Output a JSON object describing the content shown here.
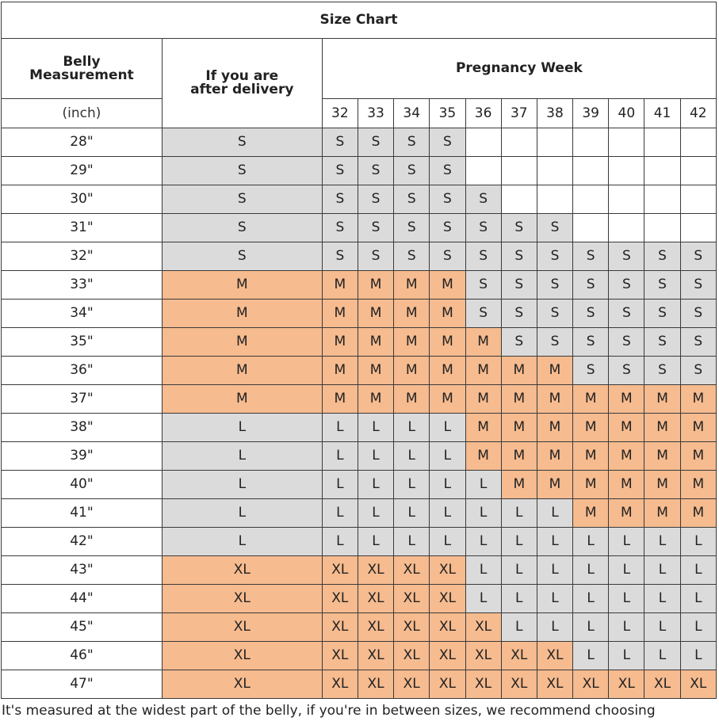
{
  "title": "Size Chart",
  "belly_header": "Belly\nMeasurement",
  "belly_unit": "(inch)",
  "delivery_header": "If you are\nafter delivery",
  "pregnancy_header": "Pregnancy Week",
  "weeks": [
    "32",
    "33",
    "34",
    "35",
    "36",
    "37",
    "38",
    "39",
    "40",
    "41",
    "42"
  ],
  "rows": [
    {
      "belly": "28\"",
      "after": "S",
      "weeks": [
        "S",
        "S",
        "S",
        "S",
        "",
        "",
        "",
        "",
        "",
        "",
        ""
      ]
    },
    {
      "belly": "29\"",
      "after": "S",
      "weeks": [
        "S",
        "S",
        "S",
        "S",
        "",
        "",
        "",
        "",
        "",
        "",
        ""
      ]
    },
    {
      "belly": "30\"",
      "after": "S",
      "weeks": [
        "S",
        "S",
        "S",
        "S",
        "S",
        "",
        "",
        "",
        "",
        "",
        ""
      ]
    },
    {
      "belly": "31\"",
      "after": "S",
      "weeks": [
        "S",
        "S",
        "S",
        "S",
        "S",
        "S",
        "S",
        "",
        "",
        "",
        ""
      ]
    },
    {
      "belly": "32\"",
      "after": "S",
      "weeks": [
        "S",
        "S",
        "S",
        "S",
        "S",
        "S",
        "S",
        "S",
        "S",
        "S",
        "S"
      ]
    },
    {
      "belly": "33\"",
      "after": "M",
      "weeks": [
        "M",
        "M",
        "M",
        "M",
        "S",
        "S",
        "S",
        "S",
        "S",
        "S",
        "S"
      ]
    },
    {
      "belly": "34\"",
      "after": "M",
      "weeks": [
        "M",
        "M",
        "M",
        "M",
        "S",
        "S",
        "S",
        "S",
        "S",
        "S",
        "S"
      ]
    },
    {
      "belly": "35\"",
      "after": "M",
      "weeks": [
        "M",
        "M",
        "M",
        "M",
        "M",
        "S",
        "S",
        "S",
        "S",
        "S",
        "S"
      ]
    },
    {
      "belly": "36\"",
      "after": "M",
      "weeks": [
        "M",
        "M",
        "M",
        "M",
        "M",
        "M",
        "M",
        "S",
        "S",
        "S",
        "S"
      ]
    },
    {
      "belly": "37\"",
      "after": "M",
      "weeks": [
        "M",
        "M",
        "M",
        "M",
        "M",
        "M",
        "M",
        "M",
        "M",
        "M",
        "M"
      ]
    },
    {
      "belly": "38\"",
      "after": "L",
      "weeks": [
        "L",
        "L",
        "L",
        "L",
        "M",
        "M",
        "M",
        "M",
        "M",
        "M",
        "M"
      ]
    },
    {
      "belly": "39\"",
      "after": "L",
      "weeks": [
        "L",
        "L",
        "L",
        "L",
        "M",
        "M",
        "M",
        "M",
        "M",
        "M",
        "M"
      ]
    },
    {
      "belly": "40\"",
      "after": "L",
      "weeks": [
        "L",
        "L",
        "L",
        "L",
        "L",
        "M",
        "M",
        "M",
        "M",
        "M",
        "M"
      ]
    },
    {
      "belly": "41\"",
      "after": "L",
      "weeks": [
        "L",
        "L",
        "L",
        "L",
        "L",
        "L",
        "L",
        "M",
        "M",
        "M",
        "M"
      ]
    },
    {
      "belly": "42\"",
      "after": "L",
      "weeks": [
        "L",
        "L",
        "L",
        "L",
        "L",
        "L",
        "L",
        "L",
        "L",
        "L",
        "L"
      ]
    },
    {
      "belly": "43\"",
      "after": "XL",
      "weeks": [
        "XL",
        "XL",
        "XL",
        "XL",
        "L",
        "L",
        "L",
        "L",
        "L",
        "L",
        "L"
      ]
    },
    {
      "belly": "44\"",
      "after": "XL",
      "weeks": [
        "XL",
        "XL",
        "XL",
        "XL",
        "L",
        "L",
        "L",
        "L",
        "L",
        "L",
        "L"
      ]
    },
    {
      "belly": "45\"",
      "after": "XL",
      "weeks": [
        "XL",
        "XL",
        "XL",
        "XL",
        "XL",
        "L",
        "L",
        "L",
        "L",
        "L",
        "L"
      ]
    },
    {
      "belly": "46\"",
      "after": "XL",
      "weeks": [
        "XL",
        "XL",
        "XL",
        "XL",
        "XL",
        "XL",
        "XL",
        "L",
        "L",
        "L",
        "L"
      ]
    },
    {
      "belly": "47\"",
      "after": "XL",
      "weeks": [
        "XL",
        "XL",
        "XL",
        "XL",
        "XL",
        "XL",
        "XL",
        "XL",
        "XL",
        "XL",
        "XL"
      ]
    }
  ],
  "colors": {
    "S": "#dbdbdb",
    "M": "#f6bb8f",
    "L": "#dbdbdb",
    "XL": "#f6bb8f",
    "empty": "#ffffff"
  },
  "note": "It's measured at the widest part of the belly, if you're in between sizes, we recommend choosing"
}
